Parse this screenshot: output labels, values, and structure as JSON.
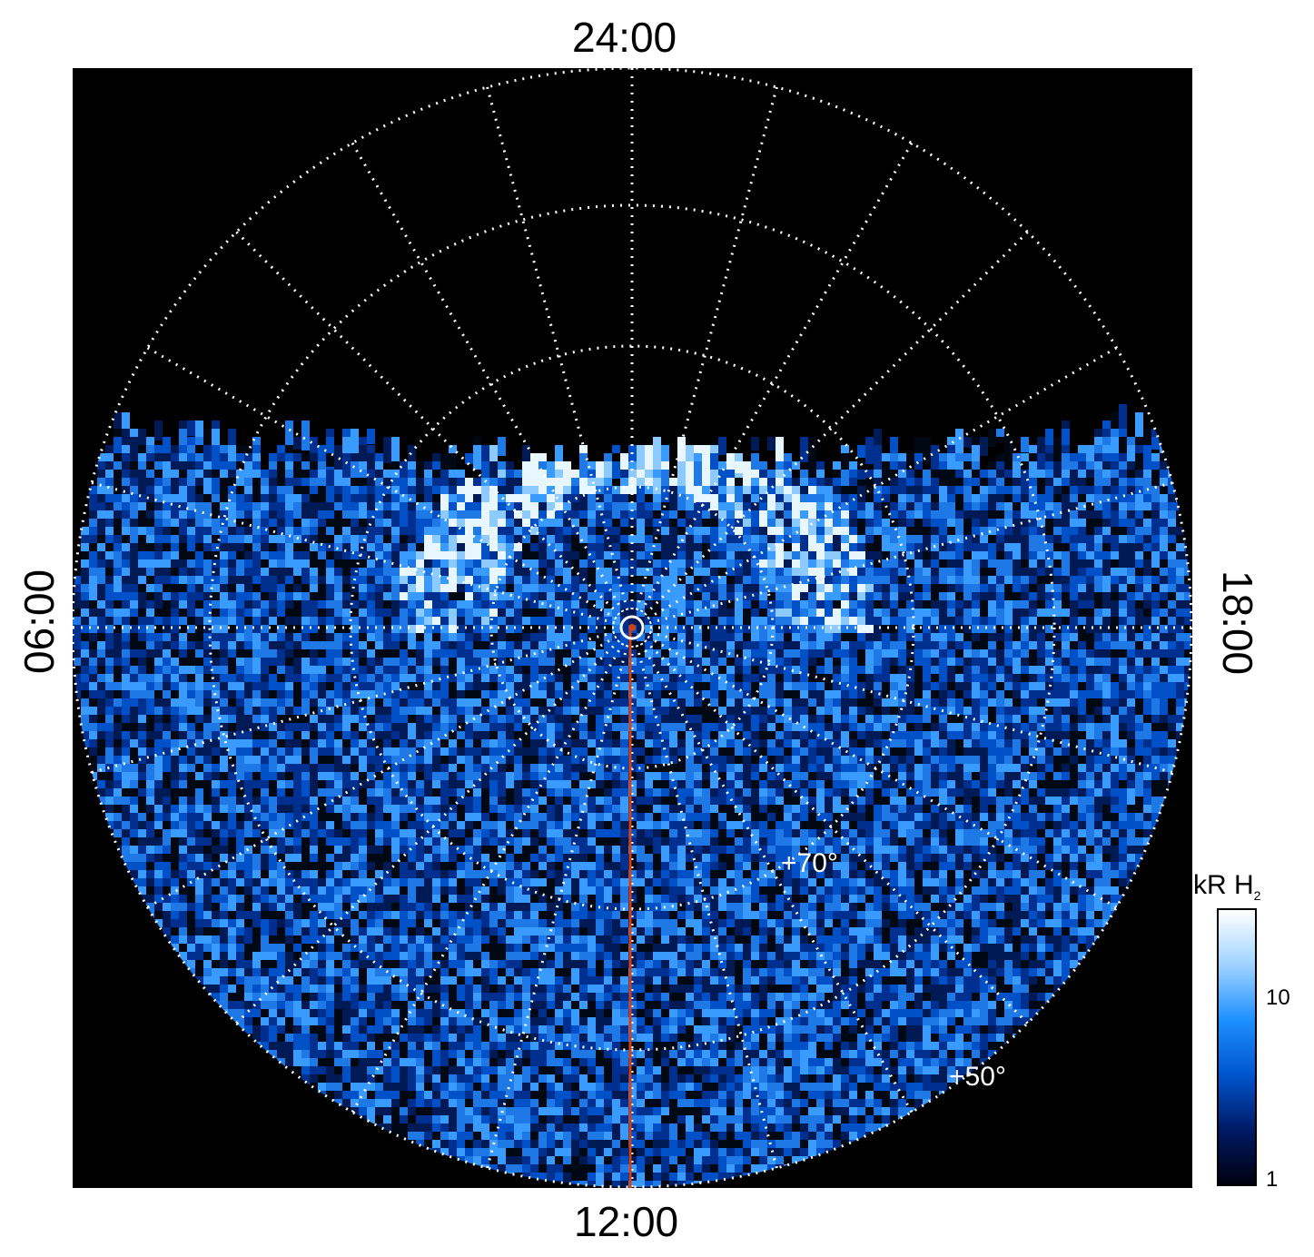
{
  "axis_labels": {
    "top": "24:00",
    "bottom": "12:00",
    "left": "06:00",
    "right": "18:00"
  },
  "latitude_labels": [
    "+70°",
    "+50°"
  ],
  "colorbar": {
    "unit": "kR H",
    "unit_sub": "2",
    "ticks": [
      "10",
      "1"
    ],
    "colors": [
      "#000010",
      "#001a66",
      "#0055cc",
      "#1e90ff",
      "#9fd3ff",
      "#ffffff"
    ]
  },
  "colors": {
    "background": "#000000",
    "grid": "#ffffff",
    "meridian_line": "#d0401a"
  }
}
